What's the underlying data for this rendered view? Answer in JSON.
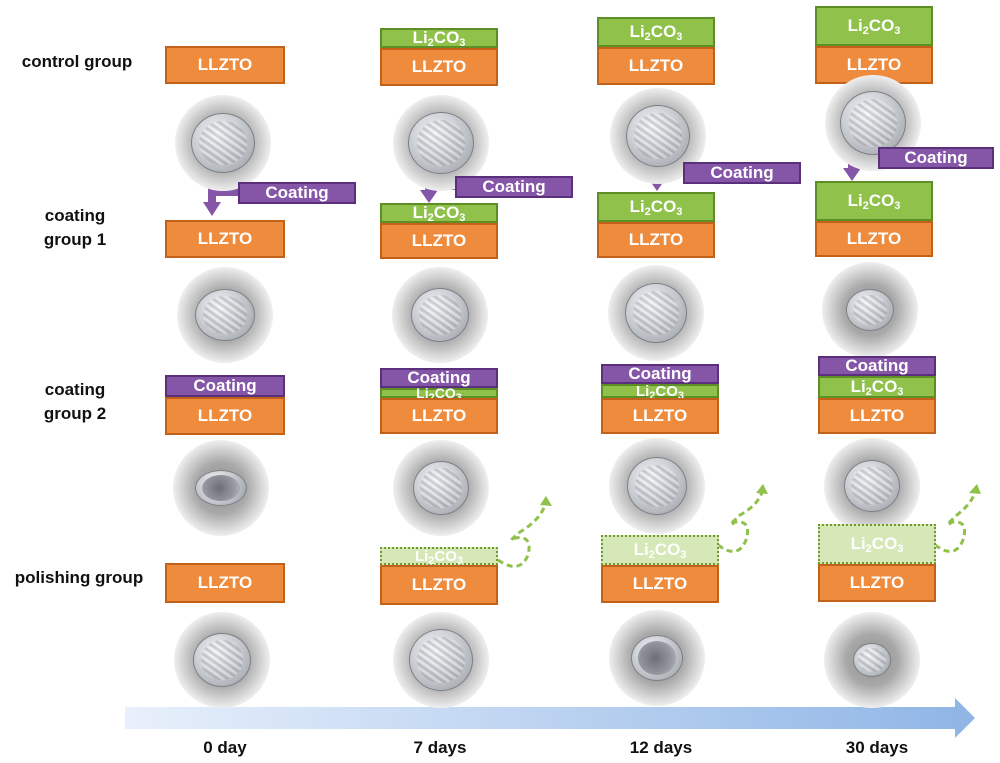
{
  "row_labels": {
    "control": "control group",
    "coating1": "coating group 1",
    "coating2": "coating group 2",
    "polishing": "polishing group"
  },
  "layer_labels": {
    "llzto": "LLZTO",
    "li_main": "Li",
    "li_sub": "2",
    "li_tail": "CO",
    "li_sub2": "3",
    "coating": "Coating"
  },
  "days": [
    "0 day",
    "7 days",
    "12 days",
    "30 days"
  ],
  "colors": {
    "llzto": "#ee8b3d",
    "li2co3": "#8fc14b",
    "coating": "#8556a7",
    "timeline": "#a8c6ec"
  }
}
